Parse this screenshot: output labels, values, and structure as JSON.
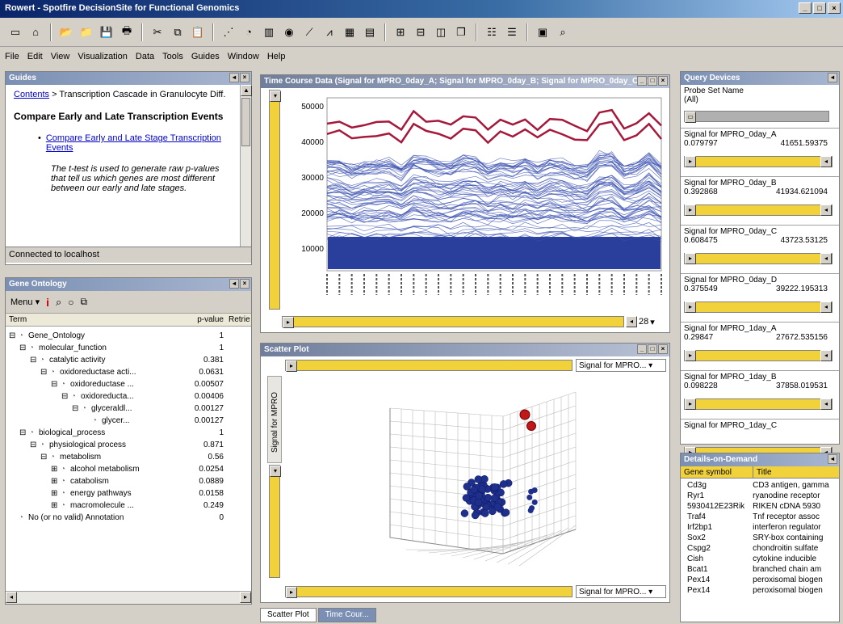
{
  "window": {
    "title": "Rowert - Spotfire DecisionSite for Functional Genomics",
    "min": "_",
    "max": "□",
    "close": "×"
  },
  "menu": [
    "File",
    "Edit",
    "View",
    "Visualization",
    "Data",
    "Tools",
    "Guides",
    "Window",
    "Help"
  ],
  "guides": {
    "title": "Guides",
    "breadcrumb_link": "Contents",
    "breadcrumb_rest": " > Transcription Cascade in Granulocyte Diff.",
    "heading": "Compare Early and Late Transcription Events",
    "bullet_link": "Compare Early and Late Stage Transcription Events",
    "body": "The t-test is used to generate raw p-values that tell us which genes are most different between our early and late stages.",
    "status": "Connected to localhost"
  },
  "gene_ontology": {
    "title": "Gene Ontology",
    "menu_label": "Menu",
    "col_term": "Term",
    "col_pvalue": "p-value",
    "col_retrieve": "Retrie",
    "rows": [
      {
        "name": "Gene_Ontology",
        "p": "1",
        "indent": 0,
        "exp": "⊟"
      },
      {
        "name": "molecular_function",
        "p": "1",
        "indent": 1,
        "exp": "⊟"
      },
      {
        "name": "catalytic activity",
        "p": "0.381",
        "indent": 2,
        "exp": "⊟"
      },
      {
        "name": "oxidoreductase acti...",
        "p": "0.0631",
        "indent": 3,
        "exp": "⊟"
      },
      {
        "name": "oxidoreductase ...",
        "p": "0.00507",
        "indent": 4,
        "exp": "⊟"
      },
      {
        "name": "oxidoreducta...",
        "p": "0.00406",
        "indent": 5,
        "exp": "⊟"
      },
      {
        "name": "glyceraldl...",
        "p": "0.00127",
        "indent": 6,
        "exp": "⊟"
      },
      {
        "name": "glycer...",
        "p": "0.00127",
        "indent": 7,
        "exp": ""
      },
      {
        "name": "biological_process",
        "p": "1",
        "indent": 1,
        "exp": "⊟"
      },
      {
        "name": "physiological process",
        "p": "0.871",
        "indent": 2,
        "exp": "⊟"
      },
      {
        "name": "metabolism",
        "p": "0.56",
        "indent": 3,
        "exp": "⊟"
      },
      {
        "name": "alcohol metabolism",
        "p": "0.0254",
        "indent": 4,
        "exp": "⊞"
      },
      {
        "name": "catabolism",
        "p": "0.0889",
        "indent": 4,
        "exp": "⊞"
      },
      {
        "name": "energy pathways",
        "p": "0.0158",
        "indent": 4,
        "exp": "⊞"
      },
      {
        "name": "macromolecule ...",
        "p": "0.249",
        "indent": 4,
        "exp": "⊞"
      },
      {
        "name": "No (or no valid) Annotation",
        "p": "0",
        "indent": 0,
        "exp": ""
      }
    ]
  },
  "time_course": {
    "title": "Time Course Data (Signal for MPRO_0day_A; Signal for MPRO_0day_B; Signal for MPRO_0day_C...)",
    "zoom": "28",
    "yticks": [
      "50000",
      "40000",
      "30000",
      "20000",
      "10000"
    ]
  },
  "scatter": {
    "title": "Scatter Plot",
    "axis_combo": "Signal for MPRO...",
    "vertical_axis": "Signal for MPRO",
    "x_combo": "Signal for MPRO...",
    "tabs": [
      "Scatter Plot",
      "Time Cour..."
    ]
  },
  "query_devices": {
    "title": "Query Devices",
    "probe_label": "Probe Set Name",
    "probe_value": "(All)",
    "blocks": [
      {
        "name": "Signal for MPRO_0day_A",
        "min": "0.079797",
        "max": "41651.59375"
      },
      {
        "name": "Signal for MPRO_0day_B",
        "min": "0.392868",
        "max": "41934.621094"
      },
      {
        "name": "Signal for MPRO_0day_C",
        "min": "0.608475",
        "max": "43723.53125"
      },
      {
        "name": "Signal for MPRO_0day_D",
        "min": "0.375549",
        "max": "39222.195313"
      },
      {
        "name": "Signal for MPRO_1day_A",
        "min": "0.29847",
        "max": "27672.535156"
      },
      {
        "name": "Signal for MPRO_1day_B",
        "min": "0.098228",
        "max": "37858.019531"
      },
      {
        "name": "Signal for MPRO_1day_C",
        "min": "",
        "max": ""
      }
    ]
  },
  "details": {
    "title": "Details-on-Demand",
    "col1": "Gene symbol",
    "col2": "Title",
    "rows": [
      [
        "Cd3g",
        "CD3 antigen, gamma"
      ],
      [
        "Ryr1",
        "ryanodine receptor"
      ],
      [
        "5930412E23Rik",
        "RIKEN cDNA 5930"
      ],
      [
        "Traf4",
        "Tnf receptor assoc"
      ],
      [
        "Irf2bp1",
        "interferon regulator"
      ],
      [
        "Sox2",
        "SRY-box containing"
      ],
      [
        "Cspg2",
        "chondroitin sulfate"
      ],
      [
        "Cish",
        "cytokine inducible"
      ],
      [
        "Bcat1",
        "branched chain am"
      ],
      [
        "Pex14",
        "peroxisomal biogen"
      ],
      [
        "Pex14",
        "peroxisomal biogen"
      ]
    ]
  },
  "colors": {
    "accent": "#a51a3c",
    "series": "#2a3f9c",
    "yellow": "#f1d23a",
    "titlebar": "#0a246a"
  }
}
